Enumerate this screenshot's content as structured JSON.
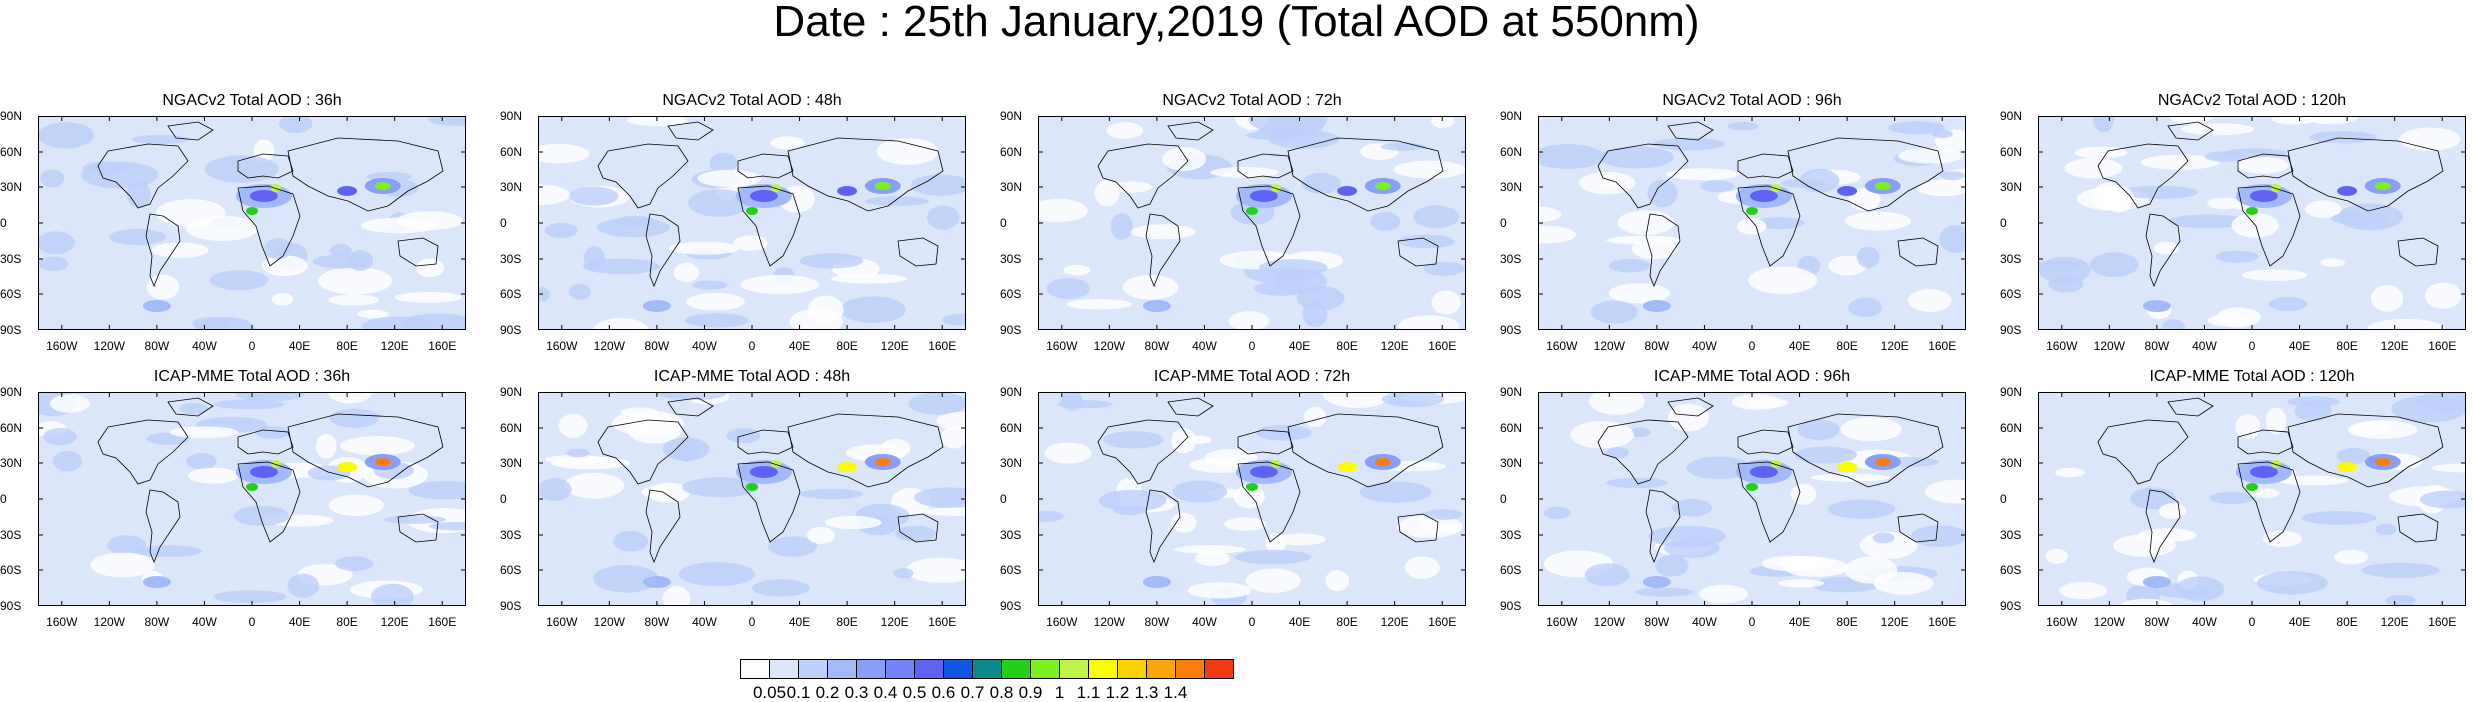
{
  "title": "Date : 25th January,2019 (Total AOD at 550nm)",
  "lat_labels": [
    "90N",
    "60N",
    "30N",
    "0",
    "30S",
    "60S",
    "90S"
  ],
  "lon_labels": [
    "160W",
    "120W",
    "80W",
    "40W",
    "0",
    "40E",
    "80E",
    "120E",
    "160E"
  ],
  "panels": [
    {
      "title": "NGACv2 Total AOD : 36h",
      "model": "NGACv2",
      "lead": "36h"
    },
    {
      "title": "NGACv2 Total AOD : 48h",
      "model": "NGACv2",
      "lead": "48h"
    },
    {
      "title": "NGACv2 Total AOD : 72h",
      "model": "NGACv2",
      "lead": "72h"
    },
    {
      "title": "NGACv2 Total AOD : 96h",
      "model": "NGACv2",
      "lead": "96h"
    },
    {
      "title": "NGACv2 Total AOD : 120h",
      "model": "NGACv2",
      "lead": "120h"
    },
    {
      "title": "ICAP-MME Total AOD : 36h",
      "model": "ICAP-MME",
      "lead": "36h"
    },
    {
      "title": "ICAP-MME Total AOD : 48h",
      "model": "ICAP-MME",
      "lead": "48h"
    },
    {
      "title": "ICAP-MME Total AOD : 72h",
      "model": "ICAP-MME",
      "lead": "72h"
    },
    {
      "title": "ICAP-MME Total AOD : 96h",
      "model": "ICAP-MME",
      "lead": "96h"
    },
    {
      "title": "ICAP-MME Total AOD : 120h",
      "model": "ICAP-MME",
      "lead": "120h"
    }
  ],
  "colorbar": {
    "labels": [
      "0.05",
      "0.1",
      "0.2",
      "0.3",
      "0.4",
      "0.5",
      "0.6",
      "0.7",
      "0.8",
      "0.9",
      "1",
      "1.1",
      "1.2",
      "1.3",
      "1.4"
    ],
    "colors": [
      "#ffffff",
      "#dbe6fb",
      "#bdd0fb",
      "#a2b9fa",
      "#889ff9",
      "#7483f8",
      "#5f63f5",
      "#0f56e4",
      "#0b8a8a",
      "#22d115",
      "#7cf01f",
      "#bdf447",
      "#fafc00",
      "#fbd200",
      "#fba60a",
      "#fb7d0a",
      "#f23a12"
    ]
  }
}
